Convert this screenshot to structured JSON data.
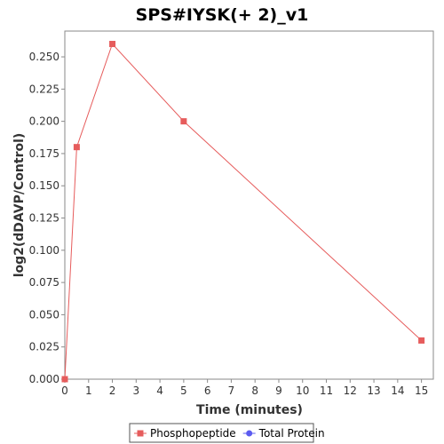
{
  "chart_data": {
    "type": "line",
    "title": "SPS#IYSK(+ 2)_v1",
    "xlabel": "Time (minutes)",
    "ylabel": "log2(dDAVP/Control)",
    "xlim": [
      0,
      15.5
    ],
    "ylim": [
      0,
      0.27
    ],
    "x_ticks": [
      "0",
      "1",
      "2",
      "3",
      "4",
      "5",
      "6",
      "7",
      "8",
      "9",
      "10",
      "11",
      "12",
      "13",
      "14",
      "15"
    ],
    "y_ticks": [
      "0.000",
      "0.025",
      "0.050",
      "0.075",
      "0.100",
      "0.125",
      "0.150",
      "0.175",
      "0.200",
      "0.225",
      "0.250"
    ],
    "grid": false,
    "legend_position": "bottom",
    "series": [
      {
        "name": "Phosphopeptide",
        "color": "#e65c5c",
        "marker": "square",
        "x": [
          0,
          0.5,
          2,
          5,
          15
        ],
        "y": [
          0.0,
          0.18,
          0.26,
          0.2,
          0.03
        ]
      },
      {
        "name": "Total Protein",
        "color": "#5b5bf0",
        "marker": "circle",
        "x": [],
        "y": []
      }
    ]
  }
}
